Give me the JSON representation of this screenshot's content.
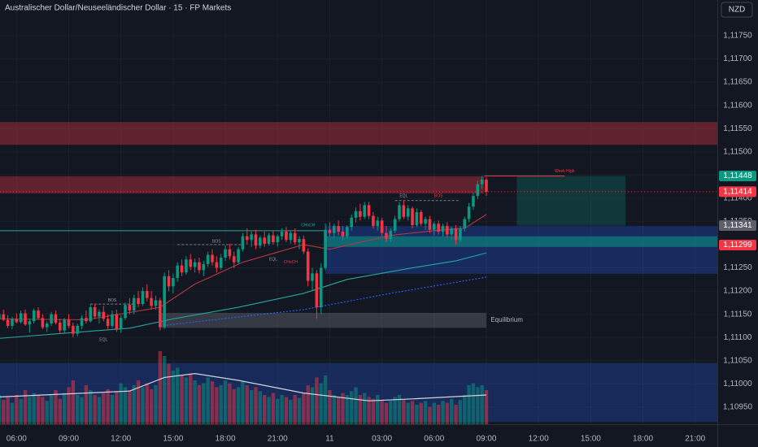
{
  "chart_data": {
    "type": "candlestick",
    "title": "Australischer Dollar/Neuseeländischer Dollar · 15 · FP Markets",
    "currency": "NZD",
    "up_color": "#089981",
    "down_color": "#f23645",
    "xlim": [
      0.2,
      165.1
    ],
    "xticks": [
      {
        "value": 4,
        "label": "06:00"
      },
      {
        "value": 16,
        "label": "09:00"
      },
      {
        "value": 28,
        "label": "12:00"
      },
      {
        "value": 40,
        "label": "15:00"
      },
      {
        "value": 52,
        "label": "18:00"
      },
      {
        "value": 64,
        "label": "21:00"
      },
      {
        "value": 76,
        "label": "11"
      },
      {
        "value": 88,
        "label": "03:00"
      },
      {
        "value": 100,
        "label": "06:00"
      },
      {
        "value": 112,
        "label": "09:00"
      },
      {
        "value": 124,
        "label": "12:00"
      },
      {
        "value": 136,
        "label": "15:00"
      },
      {
        "value": 148,
        "label": "18:00"
      },
      {
        "value": 160,
        "label": "21:00"
      }
    ],
    "ylim": [
      1.10913,
      1.11827
    ],
    "yticks": [
      {
        "value": 1.1175,
        "label": "1,11750"
      },
      {
        "value": 1.117,
        "label": "1,11700"
      },
      {
        "value": 1.1165,
        "label": "1,11650"
      },
      {
        "value": 1.116,
        "label": "1,11600"
      },
      {
        "value": 1.1155,
        "label": "1,11550"
      },
      {
        "value": 1.115,
        "label": "1,11500"
      },
      {
        "value": 1.1145,
        "label": "1,11450"
      },
      {
        "value": 1.114,
        "label": "1,11400"
      },
      {
        "value": 1.1135,
        "label": "1,11350"
      },
      {
        "value": 1.113,
        "label": "1,11300"
      },
      {
        "value": 1.1125,
        "label": "1,11250"
      },
      {
        "value": 1.112,
        "label": "1,11200"
      },
      {
        "value": 1.1115,
        "label": "1,11150"
      },
      {
        "value": 1.111,
        "label": "1,11100"
      },
      {
        "value": 1.1105,
        "label": "1,11050"
      },
      {
        "value": 1.11,
        "label": "1,11000"
      },
      {
        "value": 1.1095,
        "label": "1,10950"
      }
    ],
    "ohlc": [
      [
        1.1114,
        1.11155,
        1.11128,
        1.1115
      ],
      [
        1.1115,
        1.1116,
        1.11135,
        1.11138
      ],
      [
        1.11138,
        1.11148,
        1.1112,
        1.11125
      ],
      [
        1.11125,
        1.11145,
        1.11118,
        1.1114
      ],
      [
        1.1114,
        1.11152,
        1.1113,
        1.11133
      ],
      [
        1.11133,
        1.11158,
        1.1113,
        1.11152
      ],
      [
        1.11152,
        1.1116,
        1.11125,
        1.11128
      ],
      [
        1.11128,
        1.1114,
        1.1111,
        1.11135
      ],
      [
        1.11135,
        1.11162,
        1.1113,
        1.11158
      ],
      [
        1.11158,
        1.11165,
        1.11138,
        1.11142
      ],
      [
        1.11142,
        1.1115,
        1.11118,
        1.11122
      ],
      [
        1.11122,
        1.11135,
        1.11112,
        1.1113
      ],
      [
        1.1113,
        1.11155,
        1.11125,
        1.1115
      ],
      [
        1.1115,
        1.11158,
        1.11128,
        1.11132
      ],
      [
        1.11132,
        1.1114,
        1.11108,
        1.11115
      ],
      [
        1.11115,
        1.11142,
        1.1111,
        1.11138
      ],
      [
        1.11138,
        1.1115,
        1.1112,
        1.11125
      ],
      [
        1.11125,
        1.11132,
        1.111,
        1.11108
      ],
      [
        1.11108,
        1.1113,
        1.11102,
        1.11125
      ],
      [
        1.11125,
        1.11148,
        1.11118,
        1.11142
      ],
      [
        1.11142,
        1.11158,
        1.1113,
        1.11135
      ],
      [
        1.11135,
        1.11172,
        1.11132,
        1.11165
      ],
      [
        1.11165,
        1.11172,
        1.1114,
        1.11145
      ],
      [
        1.11145,
        1.1116,
        1.1113,
        1.11155
      ],
      [
        1.11155,
        1.11168,
        1.11135,
        1.1114
      ],
      [
        1.1114,
        1.1115,
        1.11118,
        1.11125
      ],
      [
        1.11125,
        1.11158,
        1.1112,
        1.1115
      ],
      [
        1.1115,
        1.1116,
        1.11112,
        1.11118
      ],
      [
        1.11118,
        1.11148,
        1.1111,
        1.11142
      ],
      [
        1.11142,
        1.11175,
        1.11138,
        1.1117
      ],
      [
        1.1117,
        1.11185,
        1.1115,
        1.11158
      ],
      [
        1.11158,
        1.11192,
        1.1115,
        1.11185
      ],
      [
        1.11185,
        1.112,
        1.11165,
        1.11172
      ],
      [
        1.11172,
        1.11208,
        1.11168,
        1.112
      ],
      [
        1.112,
        1.11215,
        1.11178,
        1.11185
      ],
      [
        1.11185,
        1.112,
        1.1116,
        1.11168
      ],
      [
        1.11168,
        1.1119,
        1.1116,
        1.1118
      ],
      [
        1.1118,
        1.11185,
        1.11115,
        1.11122
      ],
      [
        1.11122,
        1.1124,
        1.11118,
        1.11232
      ],
      [
        1.11232,
        1.11245,
        1.112,
        1.1121
      ],
      [
        1.1121,
        1.11238,
        1.11195,
        1.11228
      ],
      [
        1.11228,
        1.11262,
        1.1122,
        1.11255
      ],
      [
        1.11255,
        1.11268,
        1.11232,
        1.1124
      ],
      [
        1.1124,
        1.11275,
        1.11235,
        1.11268
      ],
      [
        1.11268,
        1.1128,
        1.11245,
        1.11252
      ],
      [
        1.11252,
        1.1127,
        1.1124,
        1.11262
      ],
      [
        1.11262,
        1.11272,
        1.11238,
        1.11245
      ],
      [
        1.11245,
        1.11265,
        1.11232,
        1.11258
      ],
      [
        1.11258,
        1.11285,
        1.11252,
        1.11278
      ],
      [
        1.11278,
        1.1129,
        1.11255,
        1.11262
      ],
      [
        1.11262,
        1.11275,
        1.1124,
        1.1125
      ],
      [
        1.1125,
        1.1128,
        1.11245,
        1.11272
      ],
      [
        1.11272,
        1.11298,
        1.11265,
        1.1129
      ],
      [
        1.1129,
        1.11302,
        1.11268,
        1.11275
      ],
      [
        1.11275,
        1.11285,
        1.1125,
        1.11262
      ],
      [
        1.11262,
        1.11295,
        1.11258,
        1.1129
      ],
      [
        1.1129,
        1.11325,
        1.11285,
        1.11318
      ],
      [
        1.11318,
        1.11335,
        1.113,
        1.1131
      ],
      [
        1.1131,
        1.1133,
        1.11295,
        1.11322
      ],
      [
        1.11322,
        1.11332,
        1.1129,
        1.11298
      ],
      [
        1.11298,
        1.1132,
        1.11292,
        1.11315
      ],
      [
        1.11315,
        1.11328,
        1.11295,
        1.11302
      ],
      [
        1.11302,
        1.11325,
        1.11298,
        1.1132
      ],
      [
        1.1132,
        1.1133,
        1.113,
        1.11305
      ],
      [
        1.11305,
        1.11322,
        1.11296,
        1.11318
      ],
      [
        1.11318,
        1.11335,
        1.1131,
        1.11328
      ],
      [
        1.11328,
        1.11338,
        1.11305,
        1.1131
      ],
      [
        1.1131,
        1.1133,
        1.11302,
        1.11325
      ],
      [
        1.11325,
        1.11335,
        1.113,
        1.11305
      ],
      [
        1.11305,
        1.11318,
        1.1129,
        1.11312
      ],
      [
        1.11312,
        1.1132,
        1.1128,
        1.11285
      ],
      [
        1.11285,
        1.11292,
        1.1121,
        1.11222
      ],
      [
        1.11222,
        1.1125,
        1.112,
        1.11238
      ],
      [
        1.11238,
        1.11245,
        1.1114,
        1.11165
      ],
      [
        1.11165,
        1.1126,
        1.1115,
        1.1125
      ],
      [
        1.1125,
        1.11345,
        1.11245,
        1.11332
      ],
      [
        1.11332,
        1.11348,
        1.11318,
        1.11325
      ],
      [
        1.11325,
        1.11345,
        1.11315,
        1.1134
      ],
      [
        1.1134,
        1.11352,
        1.1132,
        1.11328
      ],
      [
        1.11328,
        1.1134,
        1.1131,
        1.11318
      ],
      [
        1.11318,
        1.11342,
        1.11312,
        1.11338
      ],
      [
        1.11338,
        1.11365,
        1.1133,
        1.11358
      ],
      [
        1.11358,
        1.1138,
        1.11348,
        1.11372
      ],
      [
        1.11372,
        1.11388,
        1.11352,
        1.1136
      ],
      [
        1.1136,
        1.11392,
        1.11355,
        1.11385
      ],
      [
        1.11385,
        1.11392,
        1.11355,
        1.11362
      ],
      [
        1.11362,
        1.1137,
        1.11335,
        1.1134
      ],
      [
        1.1134,
        1.1136,
        1.1133,
        1.11352
      ],
      [
        1.11352,
        1.11358,
        1.11318,
        1.11325
      ],
      [
        1.11325,
        1.1134,
        1.11305,
        1.11312
      ],
      [
        1.11312,
        1.11335,
        1.11305,
        1.1133
      ],
      [
        1.1133,
        1.11362,
        1.11325,
        1.11355
      ],
      [
        1.11355,
        1.11392,
        1.1135,
        1.11385
      ],
      [
        1.11385,
        1.11395,
        1.11355,
        1.1136
      ],
      [
        1.1136,
        1.11385,
        1.11352,
        1.11378
      ],
      [
        1.11378,
        1.11382,
        1.11335,
        1.11342
      ],
      [
        1.11342,
        1.11378,
        1.11338,
        1.1137
      ],
      [
        1.1137,
        1.11375,
        1.1134,
        1.11345
      ],
      [
        1.11345,
        1.1136,
        1.11332,
        1.11355
      ],
      [
        1.11355,
        1.11362,
        1.11325,
        1.11332
      ],
      [
        1.11332,
        1.1135,
        1.1132,
        1.11345
      ],
      [
        1.11345,
        1.11352,
        1.11322,
        1.11328
      ],
      [
        1.11328,
        1.11345,
        1.11318,
        1.1134
      ],
      [
        1.1134,
        1.11348,
        1.11315,
        1.11322
      ],
      [
        1.11322,
        1.11338,
        1.11312,
        1.11335
      ],
      [
        1.11335,
        1.11342,
        1.113,
        1.1131
      ],
      [
        1.1131,
        1.1134,
        1.11305,
        1.11335
      ],
      [
        1.11335,
        1.1136,
        1.11328,
        1.11355
      ],
      [
        1.11355,
        1.1139,
        1.11348,
        1.11382
      ],
      [
        1.11382,
        1.11412,
        1.11375,
        1.11405
      ],
      [
        1.11405,
        1.11438,
        1.11398,
        1.1143
      ],
      [
        1.1143,
        1.11448,
        1.1142,
        1.1144
      ],
      [
        1.1144,
        1.11445,
        1.11405,
        1.11414
      ]
    ],
    "volume": {
      "ylim": [
        0,
        100
      ],
      "values": [
        30,
        25,
        28,
        22,
        30,
        26,
        35,
        28,
        32,
        30,
        28,
        24,
        30,
        35,
        26,
        32,
        38,
        45,
        30,
        28,
        40,
        35,
        30,
        28,
        32,
        36,
        30,
        34,
        42,
        38,
        35,
        40,
        45,
        38,
        42,
        36,
        40,
        75,
        70,
        62,
        55,
        58,
        50,
        48,
        52,
        45,
        40,
        42,
        48,
        44,
        38,
        40,
        45,
        42,
        36,
        38,
        44,
        40,
        35,
        38,
        34,
        30,
        28,
        32,
        26,
        30,
        28,
        25,
        30,
        27,
        32,
        40,
        38,
        48,
        42,
        50,
        35,
        30,
        28,
        32,
        30,
        34,
        38,
        30,
        32,
        28,
        26,
        30,
        25,
        22,
        24,
        28,
        30,
        25,
        22,
        24,
        20,
        22,
        24,
        18,
        22,
        20,
        24,
        22,
        26,
        20,
        25,
        30,
        40,
        42,
        38,
        40,
        35
      ]
    },
    "moving_averages": [
      {
        "color": "#b2383f",
        "dash": false,
        "points": [
          [
            0,
            1.1114
          ],
          [
            20,
            1.11138
          ],
          [
            37,
            1.11165
          ],
          [
            45,
            1.11215
          ],
          [
            56,
            1.11262
          ],
          [
            70,
            1.113
          ],
          [
            76,
            1.1129
          ],
          [
            90,
            1.1132
          ],
          [
            100,
            1.1133
          ],
          [
            107,
            1.11335
          ],
          [
            112,
            1.11365
          ]
        ]
      },
      {
        "color": "#26a69a",
        "dash": false,
        "points": [
          [
            0,
            1.11098
          ],
          [
            30,
            1.1112
          ],
          [
            40,
            1.1114
          ],
          [
            55,
            1.11165
          ],
          [
            70,
            1.11195
          ],
          [
            80,
            1.11225
          ],
          [
            95,
            1.1125
          ],
          [
            105,
            1.11265
          ],
          [
            112,
            1.11282
          ]
        ]
      },
      {
        "color": "#2962ff",
        "dash": true,
        "points": [
          [
            37,
            1.11125
          ],
          [
            70,
            1.1116
          ],
          [
            90,
            1.11195
          ],
          [
            112,
            1.1123
          ]
        ]
      }
    ],
    "volume_ma": {
      "color": "#d1d4dc",
      "points": [
        [
          0,
          28
        ],
        [
          30,
          34
        ],
        [
          38,
          48
        ],
        [
          45,
          52
        ],
        [
          55,
          45
        ],
        [
          70,
          32
        ],
        [
          85,
          24
        ],
        [
          95,
          26
        ],
        [
          112,
          30
        ]
      ]
    },
    "zones": [
      {
        "x": [
          0,
          165.1
        ],
        "y": [
          1.11515,
          1.11564
        ],
        "color": "rgba(242,54,69,0.35)"
      },
      {
        "x": [
          0,
          111.5
        ],
        "y": [
          1.1141,
          1.11447
        ],
        "color": "rgba(242,54,69,0.35)"
      },
      {
        "x": [
          75,
          165.1
        ],
        "y": [
          1.11237,
          1.1134
        ],
        "color": "rgba(41,98,255,0.28)"
      },
      {
        "x": [
          75,
          165.1
        ],
        "y": [
          1.11295,
          1.11318
        ],
        "color": "rgba(8,153,129,0.55)"
      },
      {
        "x": [
          119,
          144
        ],
        "y": [
          1.11341,
          1.11448
        ],
        "color": "rgba(8,153,129,0.25)"
      },
      {
        "x": [
          37,
          112
        ],
        "y": [
          1.11121,
          1.11153
        ],
        "color": "rgba(120,123,134,0.35)"
      },
      {
        "x": [
          0,
          165.1
        ],
        "y": [
          1.10918,
          1.11045
        ],
        "color": "rgba(41,98,255,0.25)"
      }
    ],
    "levels": [
      {
        "x": [
          0,
          75
        ],
        "y": 1.1133,
        "color": "#26a69a",
        "dash": false
      },
      {
        "x": [
          111.5,
          130
        ],
        "y": 1.11448,
        "color": "#f23645",
        "dash": false
      },
      {
        "x": [
          21,
          31
        ],
        "y": 1.11172,
        "color": "#787b86",
        "dash": true
      },
      {
        "x": [
          41,
          56
        ],
        "y": 1.113,
        "color": "#787b86",
        "dash": true
      },
      {
        "x": [
          91,
          106
        ],
        "y": 1.11395,
        "color": "#787b86",
        "dash": true
      }
    ],
    "annotations": [
      {
        "text": "BOS",
        "x": 26,
        "y": 1.1118,
        "color": "#9598a1"
      },
      {
        "text": "EQL",
        "x": 24,
        "y": 1.11095,
        "color": "#9598a1"
      },
      {
        "text": "BOS",
        "x": 50,
        "y": 1.11307,
        "color": "#9598a1"
      },
      {
        "text": "EQL",
        "x": 63,
        "y": 1.11268,
        "color": "#9598a1"
      },
      {
        "text": "CHoCH",
        "x": 67,
        "y": 1.11262,
        "color": "#f23645"
      },
      {
        "text": "CHoCH",
        "x": 71,
        "y": 1.11342,
        "color": "#26a69a"
      },
      {
        "text": "EQL",
        "x": 93,
        "y": 1.11405,
        "color": "#9598a1"
      },
      {
        "text": "BOS",
        "x": 101,
        "y": 1.11405,
        "color": "#f23645"
      },
      {
        "text": "Week High",
        "x": 130,
        "y": 1.11458,
        "color": "#f23645"
      },
      {
        "text": "Equilibrium",
        "x": 113,
        "y": 1.11137,
        "color": "#b2b5be"
      }
    ],
    "price_labels": [
      {
        "value": 1.11448,
        "label": "1,11448",
        "color": "#089981",
        "line": false
      },
      {
        "value": 1.11414,
        "label": "1,11414",
        "color": "#f23645",
        "line": true
      },
      {
        "value": 1.11341,
        "label": "1,11341",
        "color": "#5d606b",
        "line": false
      },
      {
        "value": 1.11299,
        "label": "1,11299",
        "color": "#f23645",
        "line": false
      }
    ]
  }
}
